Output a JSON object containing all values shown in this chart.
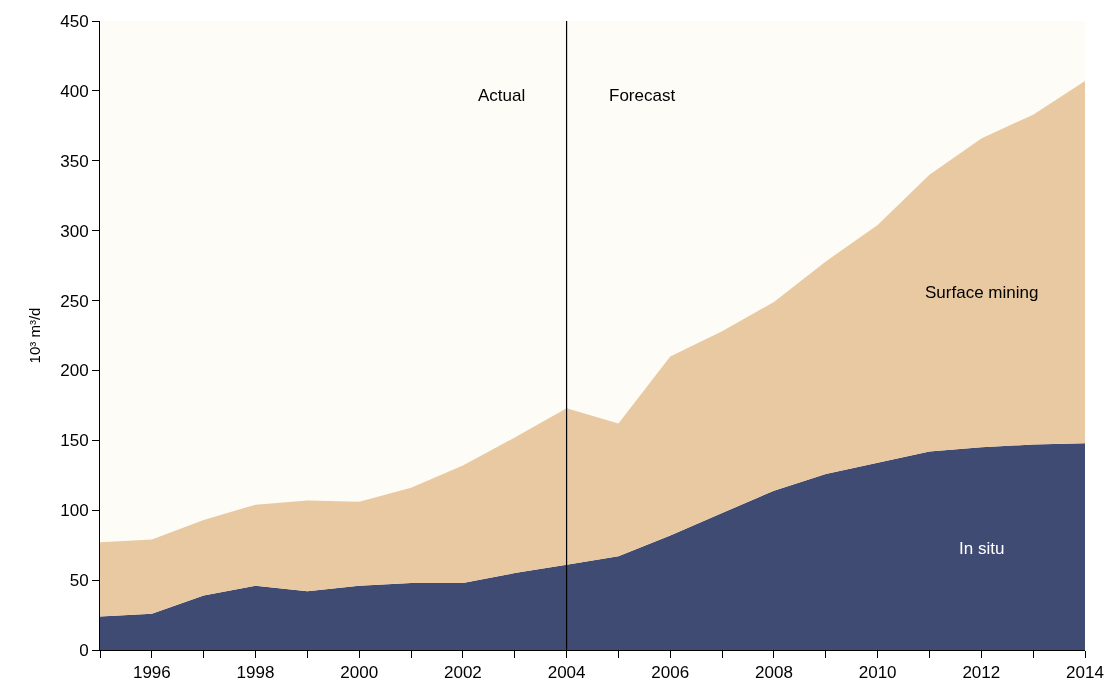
{
  "chart_data": {
    "type": "area",
    "stacked": true,
    "ylabel": "10³ m³/d",
    "x": [
      1995,
      1996,
      1997,
      1998,
      1999,
      2000,
      2001,
      2002,
      2003,
      2004,
      2005,
      2006,
      2007,
      2008,
      2009,
      2010,
      2011,
      2012,
      2013,
      2014
    ],
    "series": [
      {
        "name": "In situ",
        "color": "#404b74",
        "values": [
          24,
          26,
          39,
          46,
          42,
          46,
          48,
          48,
          55,
          61,
          67,
          82,
          98,
          114,
          126,
          134,
          142,
          145,
          147,
          148
        ]
      },
      {
        "name": "Surface mining",
        "color": "#e9c9a1",
        "values": [
          53,
          53,
          54,
          58,
          65,
          60,
          68,
          84,
          97,
          112,
          95,
          128,
          130,
          135,
          152,
          170,
          198,
          221,
          236,
          259
        ]
      }
    ],
    "xlim": [
      1995,
      2014
    ],
    "xticks": [
      {
        "value": 1995,
        "label": null
      },
      1996,
      {
        "value": 1997,
        "label": null
      },
      1998,
      {
        "value": 1999,
        "label": null
      },
      2000,
      {
        "value": 2001,
        "label": null
      },
      2002,
      {
        "value": 2003,
        "label": null
      },
      2004,
      {
        "value": 2005,
        "label": null
      },
      2006,
      {
        "value": 2007,
        "label": null
      },
      2008,
      {
        "value": 2009,
        "label": null
      },
      2010,
      {
        "value": 2011,
        "label": null
      },
      2012,
      {
        "value": 2013,
        "label": null
      },
      2014
    ],
    "ylim": [
      0,
      450
    ],
    "yticks": [
      0,
      50,
      100,
      150,
      200,
      250,
      300,
      350,
      400,
      450
    ],
    "ref_lines": [
      {
        "axis": "x",
        "value": 2004,
        "label": null,
        "color": "#000000"
      }
    ],
    "annotations": [
      "Actual",
      "Forecast"
    ],
    "grid": false,
    "legend": false
  }
}
